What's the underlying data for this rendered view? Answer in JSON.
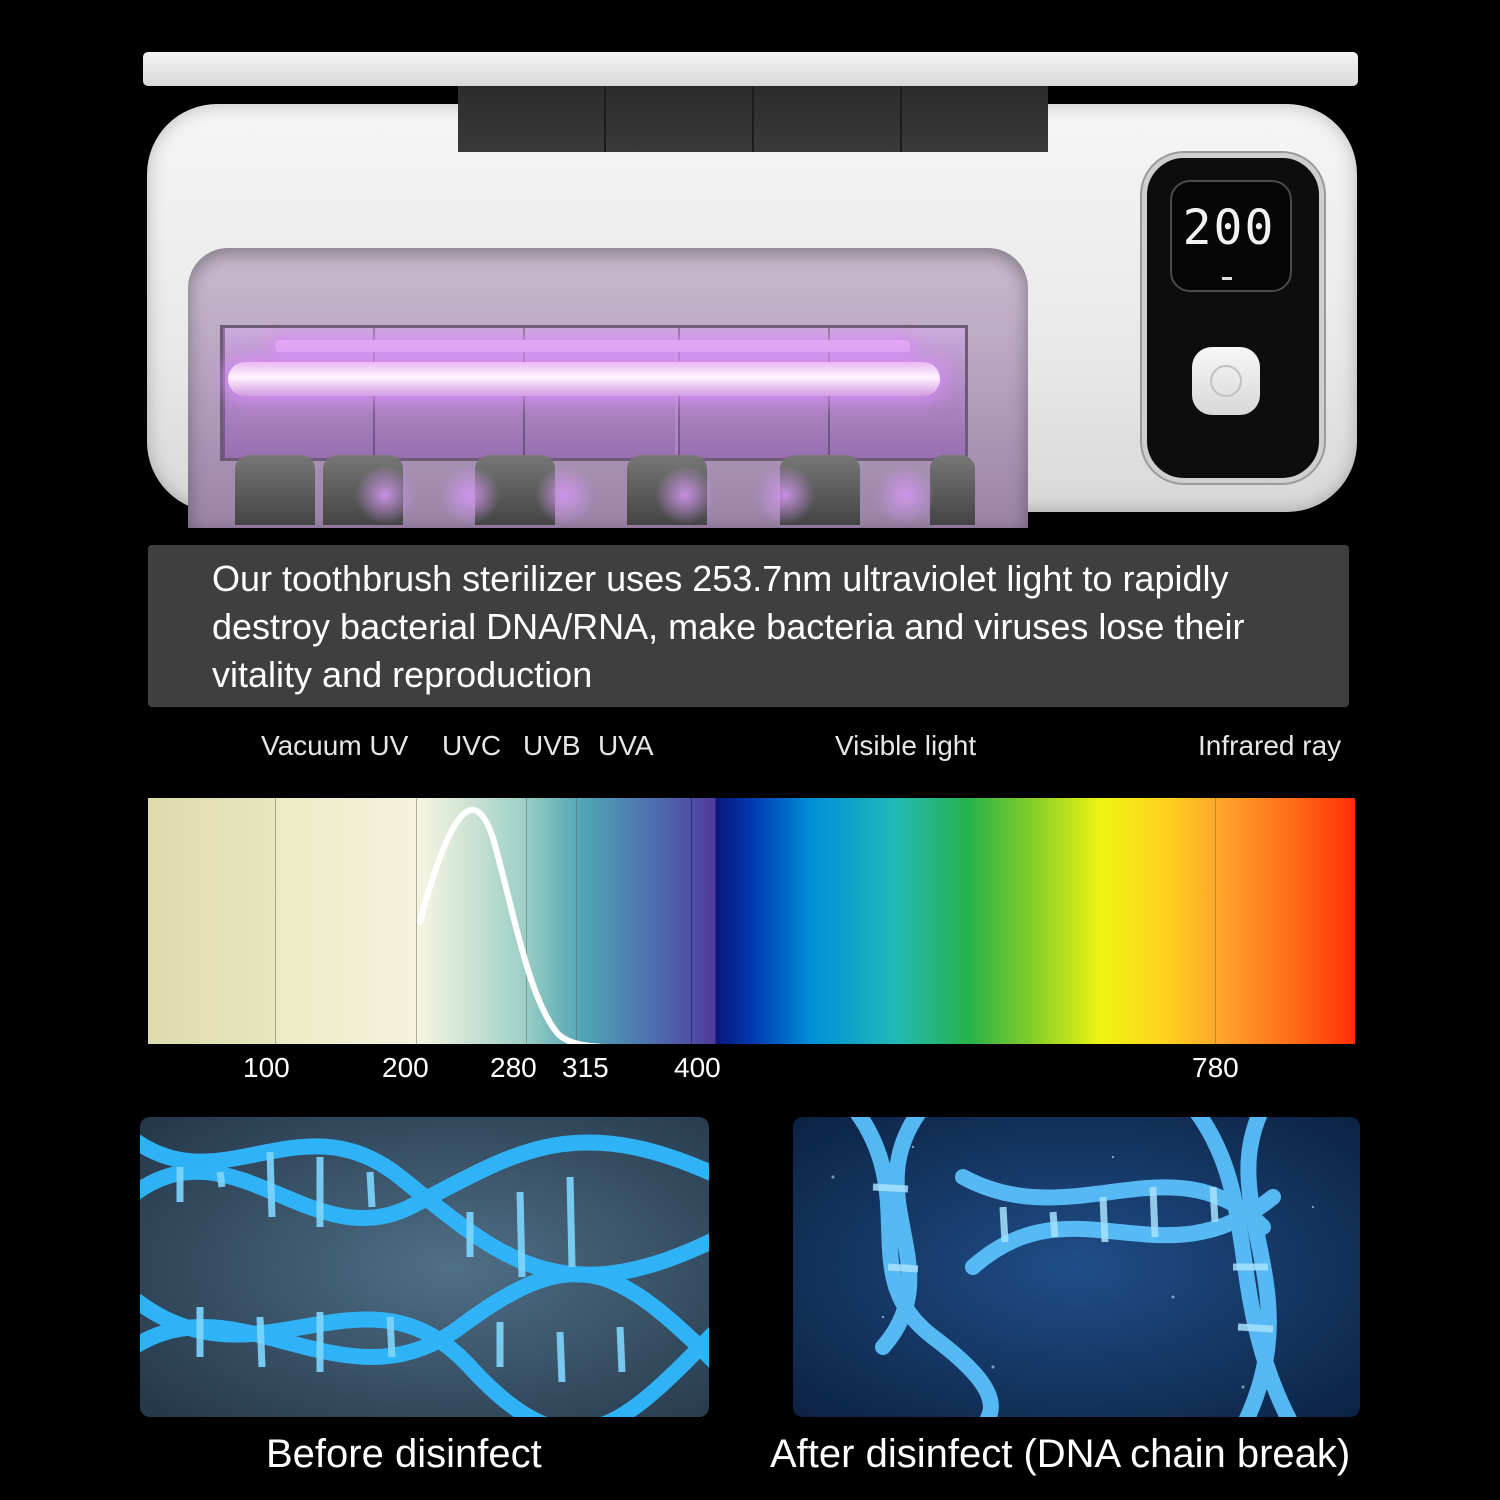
{
  "device": {
    "display_value": "200",
    "power_icon": "power-button-icon"
  },
  "caption": {
    "text": "Our toothbrush sterilizer uses 253.7nm ultraviolet light to rapidly destroy bacterial DNA/RNA, make bacteria and viruses lose their vitality and reproduction"
  },
  "spectrum": {
    "bands": [
      {
        "label": "Vacuum UV"
      },
      {
        "label": "UVC"
      },
      {
        "label": "UVB"
      },
      {
        "label": "UVA"
      },
      {
        "label": "Visible light"
      },
      {
        "label": "Infrared ray"
      }
    ],
    "ticks": [
      "100",
      "200",
      "280",
      "315",
      "400",
      "780"
    ]
  },
  "images": {
    "before_label": "Before disinfect",
    "after_label": "After disinfect (DNA chain break)"
  },
  "colors": {
    "uv_glow": "#d99cf0",
    "caption_bg": "#3f3f3f",
    "dna_blue": "#2fb8ff"
  }
}
